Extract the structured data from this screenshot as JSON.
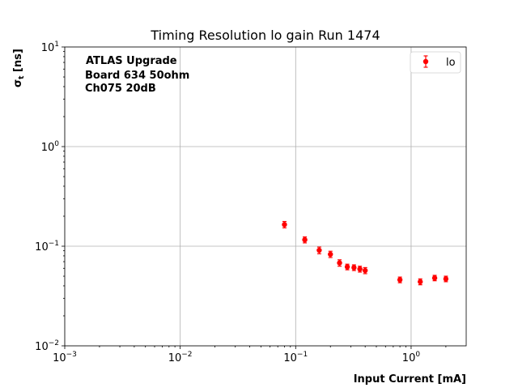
{
  "chart_data": {
    "type": "scatter",
    "title": "Timing Resolution lo gain Run 1474",
    "xlabel": "Input Current [mA]",
    "ylabel_main": "σ",
    "ylabel_sub": "t",
    "ylabel_unit": " [ns]",
    "xscale": "log",
    "yscale": "log",
    "xlim": [
      0.001,
      3
    ],
    "ylim": [
      0.01,
      10
    ],
    "grid": true,
    "x_ticks": [
      {
        "value": 0.001,
        "base": "10",
        "exp": "−3"
      },
      {
        "value": 0.01,
        "base": "10",
        "exp": "−2"
      },
      {
        "value": 0.1,
        "base": "10",
        "exp": "−1"
      },
      {
        "value": 1,
        "base": "10",
        "exp": "0"
      }
    ],
    "y_ticks": [
      {
        "value": 0.01,
        "base": "10",
        "exp": "−2"
      },
      {
        "value": 0.1,
        "base": "10",
        "exp": "−1"
      },
      {
        "value": 1,
        "base": "10",
        "exp": "0"
      },
      {
        "value": 10,
        "base": "10",
        "exp": "1"
      }
    ],
    "annotations": [
      "ATLAS Upgrade",
      "Board 634 50ohm",
      "Ch075 20dB"
    ],
    "legend_position": "upper right",
    "series": [
      {
        "name": "lo",
        "color": "#ff0000",
        "marker": "circle",
        "error_bars": true,
        "points": [
          {
            "x": 0.08,
            "y": 0.165,
            "err": 0.012
          },
          {
            "x": 0.12,
            "y": 0.116,
            "err": 0.008
          },
          {
            "x": 0.16,
            "y": 0.091,
            "err": 0.007
          },
          {
            "x": 0.2,
            "y": 0.083,
            "err": 0.006
          },
          {
            "x": 0.24,
            "y": 0.068,
            "err": 0.005
          },
          {
            "x": 0.28,
            "y": 0.062,
            "err": 0.004
          },
          {
            "x": 0.32,
            "y": 0.061,
            "err": 0.004
          },
          {
            "x": 0.36,
            "y": 0.059,
            "err": 0.004
          },
          {
            "x": 0.4,
            "y": 0.057,
            "err": 0.004
          },
          {
            "x": 0.8,
            "y": 0.046,
            "err": 0.003
          },
          {
            "x": 1.2,
            "y": 0.044,
            "err": 0.003
          },
          {
            "x": 1.6,
            "y": 0.048,
            "err": 0.003
          },
          {
            "x": 2.0,
            "y": 0.047,
            "err": 0.003
          }
        ]
      }
    ]
  }
}
